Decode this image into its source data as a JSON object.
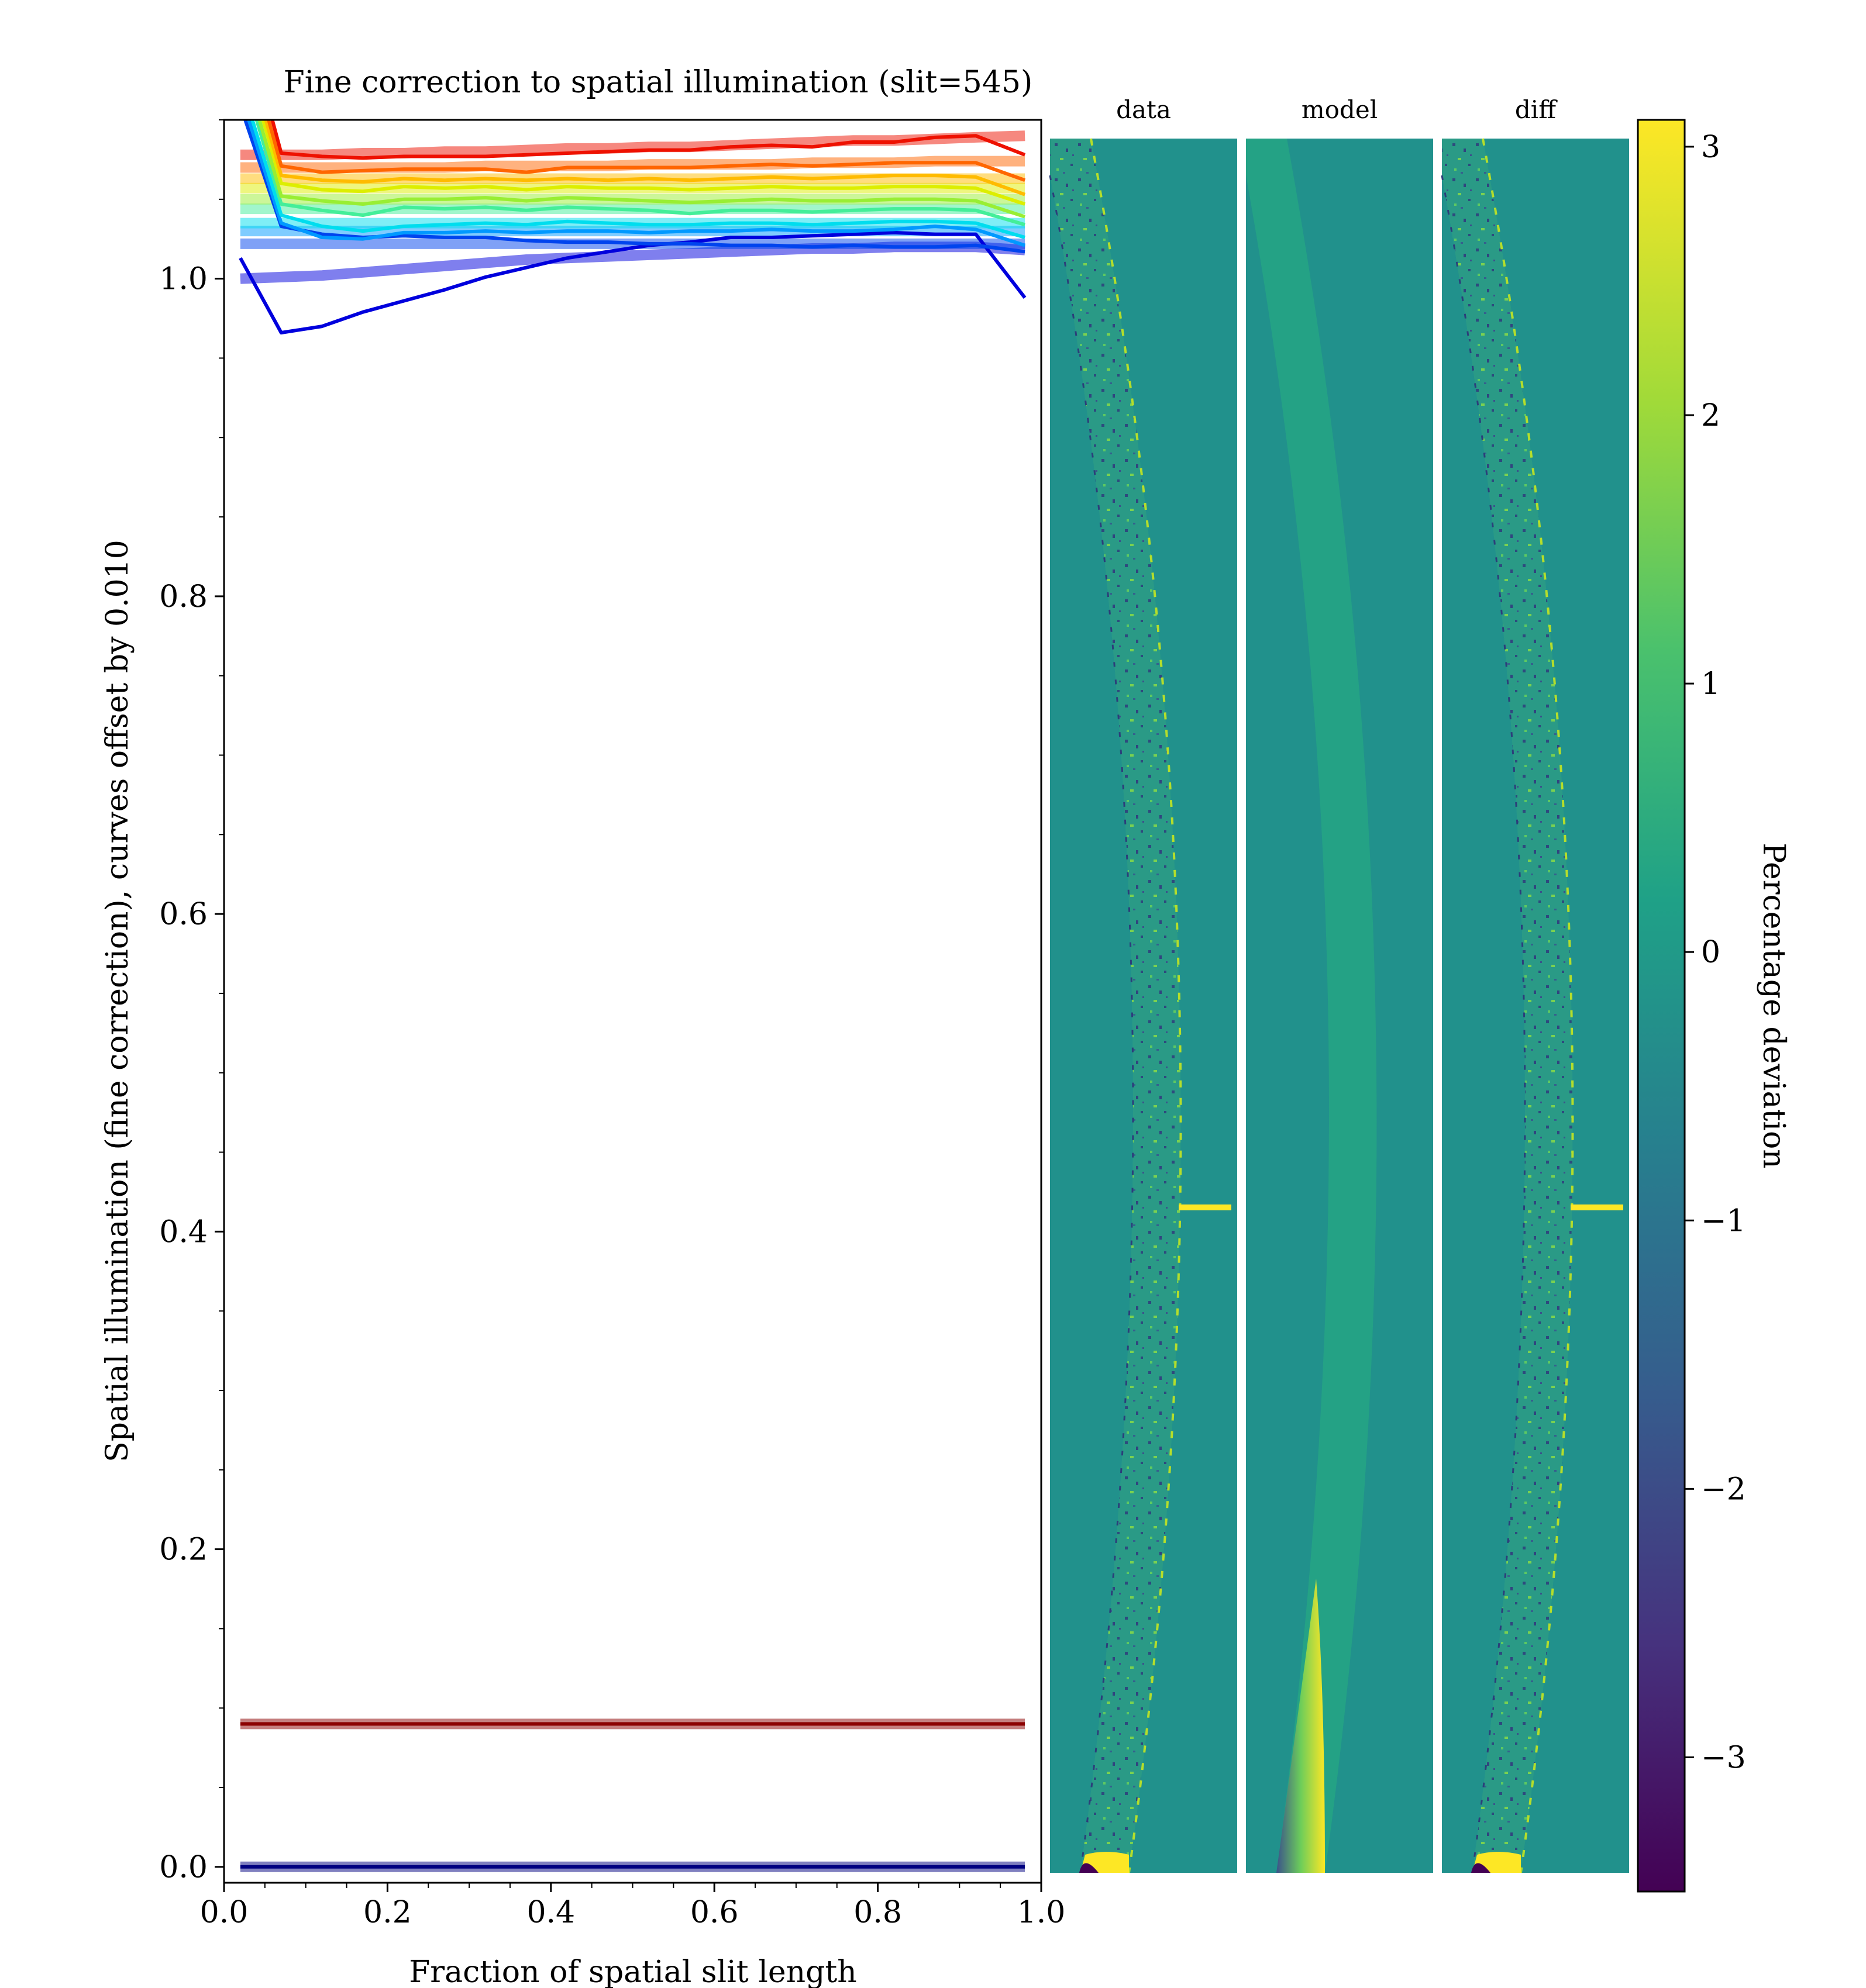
{
  "chart_data": [
    {
      "type": "line",
      "title": "Fine correction to spatial illumination (slit=545)",
      "xlabel": "Fraction of spatial slit length",
      "ylabel": "Spatial illumination (fine correction), curves offset by 0.010",
      "xlim": [
        0.0,
        1.0
      ],
      "ylim": [
        -0.01,
        1.1
      ],
      "xticks": [
        0.0,
        0.2,
        0.4,
        0.6,
        0.8,
        1.0
      ],
      "xtick_labels": [
        "0.0",
        "0.2",
        "0.4",
        "0.6",
        "0.8",
        "1.0"
      ],
      "yticks": [
        0.0,
        0.2,
        0.4,
        0.6,
        0.8,
        1.0
      ],
      "ytick_labels": [
        "0.0",
        "0.2",
        "0.4",
        "0.6",
        "0.8",
        "1.0"
      ],
      "grid": false,
      "x": [
        0.02,
        0.07,
        0.12,
        0.17,
        0.22,
        0.27,
        0.32,
        0.37,
        0.42,
        0.47,
        0.52,
        0.57,
        0.62,
        0.67,
        0.72,
        0.77,
        0.82,
        0.87,
        0.92,
        0.98
      ],
      "series": [
        {
          "color": "#0000dd",
          "values": [
            1.013,
            0.966,
            0.97,
            0.979,
            0.986,
            0.993,
            1.001,
            1.007,
            1.013,
            1.017,
            1.021,
            1.023,
            1.026,
            1.026,
            1.027,
            1.028,
            1.029,
            1.028,
            1.028,
            0.988
          ],
          "fit": [
            1.0,
            1.001,
            1.002,
            1.004,
            1.006,
            1.008,
            1.01,
            1.012,
            1.013,
            1.014,
            1.015,
            1.016,
            1.017,
            1.018,
            1.019,
            1.019,
            1.02,
            1.02,
            1.02,
            1.018
          ]
        },
        {
          "color": "#0044ee",
          "values": [
            1.109,
            1.033,
            1.028,
            1.026,
            1.027,
            1.026,
            1.026,
            1.024,
            1.023,
            1.023,
            1.022,
            1.022,
            1.021,
            1.021,
            1.02,
            1.021,
            1.02,
            1.02,
            1.021,
            1.017
          ],
          "fit": [
            1.022,
            1.022,
            1.022,
            1.022,
            1.022,
            1.022,
            1.022,
            1.022,
            1.022,
            1.022,
            1.022,
            1.022,
            1.022,
            1.022,
            1.022,
            1.022,
            1.022,
            1.022,
            1.022,
            1.022
          ]
        },
        {
          "color": "#0099ff",
          "values": [
            1.117,
            1.035,
            1.026,
            1.025,
            1.029,
            1.029,
            1.03,
            1.029,
            1.03,
            1.03,
            1.029,
            1.03,
            1.03,
            1.031,
            1.03,
            1.03,
            1.031,
            1.033,
            1.031,
            1.021
          ],
          "fit": [
            1.03,
            1.03,
            1.03,
            1.03,
            1.03,
            1.03,
            1.03,
            1.03,
            1.03,
            1.03,
            1.03,
            1.03,
            1.03,
            1.03,
            1.03,
            1.03,
            1.03,
            1.03,
            1.03,
            1.03
          ]
        },
        {
          "color": "#00ddee",
          "values": [
            1.125,
            1.04,
            1.033,
            1.03,
            1.033,
            1.034,
            1.035,
            1.034,
            1.036,
            1.035,
            1.034,
            1.034,
            1.035,
            1.035,
            1.034,
            1.035,
            1.036,
            1.036,
            1.035,
            1.026
          ],
          "fit": [
            1.035,
            1.035,
            1.035,
            1.035,
            1.035,
            1.035,
            1.035,
            1.035,
            1.035,
            1.035,
            1.035,
            1.035,
            1.035,
            1.035,
            1.035,
            1.035,
            1.035,
            1.035,
            1.035,
            1.035
          ]
        },
        {
          "color": "#44ee99",
          "values": [
            1.135,
            1.047,
            1.043,
            1.04,
            1.045,
            1.044,
            1.045,
            1.043,
            1.045,
            1.044,
            1.043,
            1.041,
            1.043,
            1.043,
            1.042,
            1.043,
            1.044,
            1.044,
            1.043,
            1.034
          ],
          "fit": [
            1.044,
            1.044,
            1.044,
            1.044,
            1.044,
            1.044,
            1.044,
            1.044,
            1.044,
            1.044,
            1.044,
            1.044,
            1.044,
            1.044,
            1.044,
            1.044,
            1.044,
            1.044,
            1.044,
            1.044
          ]
        },
        {
          "color": "#99ee33",
          "values": [
            1.142,
            1.052,
            1.049,
            1.047,
            1.05,
            1.05,
            1.051,
            1.049,
            1.051,
            1.05,
            1.049,
            1.048,
            1.049,
            1.05,
            1.049,
            1.049,
            1.05,
            1.05,
            1.049,
            1.039
          ],
          "fit": [
            1.05,
            1.05,
            1.05,
            1.05,
            1.05,
            1.05,
            1.05,
            1.05,
            1.05,
            1.05,
            1.05,
            1.05,
            1.05,
            1.05,
            1.05,
            1.05,
            1.05,
            1.05,
            1.05,
            1.05
          ]
        },
        {
          "color": "#ddee00",
          "values": [
            1.15,
            1.06,
            1.056,
            1.055,
            1.058,
            1.057,
            1.058,
            1.056,
            1.058,
            1.057,
            1.057,
            1.056,
            1.057,
            1.058,
            1.057,
            1.057,
            1.058,
            1.058,
            1.057,
            1.047
          ],
          "fit": [
            1.057,
            1.057,
            1.057,
            1.057,
            1.057,
            1.057,
            1.057,
            1.057,
            1.057,
            1.057,
            1.057,
            1.057,
            1.057,
            1.057,
            1.057,
            1.057,
            1.057,
            1.057,
            1.057,
            1.057
          ]
        },
        {
          "color": "#ffbb00",
          "values": [
            1.158,
            1.065,
            1.062,
            1.061,
            1.063,
            1.062,
            1.063,
            1.062,
            1.063,
            1.062,
            1.063,
            1.062,
            1.063,
            1.064,
            1.063,
            1.064,
            1.065,
            1.065,
            1.064,
            1.053
          ],
          "fit": [
            1.063,
            1.063,
            1.063,
            1.063,
            1.063,
            1.063,
            1.063,
            1.063,
            1.063,
            1.063,
            1.063,
            1.063,
            1.063,
            1.063,
            1.063,
            1.063,
            1.063,
            1.063,
            1.063,
            1.063
          ]
        },
        {
          "color": "#ff6600",
          "values": [
            1.165,
            1.071,
            1.067,
            1.068,
            1.069,
            1.069,
            1.069,
            1.067,
            1.07,
            1.07,
            1.07,
            1.07,
            1.071,
            1.072,
            1.071,
            1.072,
            1.073,
            1.073,
            1.073,
            1.062
          ],
          "fit": [
            1.07,
            1.07,
            1.07,
            1.07,
            1.07,
            1.07,
            1.071,
            1.071,
            1.071,
            1.071,
            1.072,
            1.072,
            1.072,
            1.072,
            1.073,
            1.073,
            1.073,
            1.074,
            1.074,
            1.074
          ]
        },
        {
          "color": "#ee1100",
          "values": [
            1.175,
            1.079,
            1.077,
            1.076,
            1.077,
            1.077,
            1.077,
            1.078,
            1.079,
            1.08,
            1.081,
            1.081,
            1.083,
            1.084,
            1.083,
            1.086,
            1.086,
            1.089,
            1.09,
            1.078
          ],
          "fit": [
            1.078,
            1.078,
            1.078,
            1.079,
            1.079,
            1.08,
            1.08,
            1.081,
            1.082,
            1.082,
            1.083,
            1.083,
            1.084,
            1.085,
            1.086,
            1.087,
            1.087,
            1.088,
            1.089,
            1.09
          ]
        },
        {
          "color": "#8b0000",
          "values": [
            0.09,
            0.09,
            0.09,
            0.09,
            0.09,
            0.09,
            0.09,
            0.09,
            0.09,
            0.09,
            0.09,
            0.09,
            0.09,
            0.09,
            0.09,
            0.09,
            0.09,
            0.09,
            0.09,
            0.09
          ],
          "fit": [
            0.09,
            0.09,
            0.09,
            0.09,
            0.09,
            0.09,
            0.09,
            0.09,
            0.09,
            0.09,
            0.09,
            0.09,
            0.09,
            0.09,
            0.09,
            0.09,
            0.09,
            0.09,
            0.09,
            0.09
          ]
        },
        {
          "color": "#000080",
          "values": [
            0.0,
            0.0,
            0.0,
            0.0,
            0.0,
            0.0,
            0.0,
            0.0,
            0.0,
            0.0,
            0.0,
            0.0,
            0.0,
            0.0,
            0.0,
            0.0,
            0.0,
            0.0,
            0.0,
            0.0
          ],
          "fit": [
            0.0,
            0.0,
            0.0,
            0.0,
            0.0,
            0.0,
            0.0,
            0.0,
            0.0,
            0.0,
            0.0,
            0.0,
            0.0,
            0.0,
            0.0,
            0.0,
            0.0,
            0.0,
            0.0,
            0.0
          ]
        }
      ]
    },
    {
      "type": "heatmap",
      "panels": [
        "data",
        "model",
        "diff"
      ],
      "colormap": "viridis",
      "background_color": "#21918c",
      "colorbar": {
        "label": "Percentage deviation",
        "vmin": -3.5,
        "vmax": 3.1,
        "ticks": [
          3,
          2,
          1,
          0,
          -1,
          -2,
          -3
        ],
        "tick_labels": [
          "3",
          "2",
          "1",
          "0",
          "−1",
          "−2",
          "−3"
        ]
      }
    }
  ]
}
